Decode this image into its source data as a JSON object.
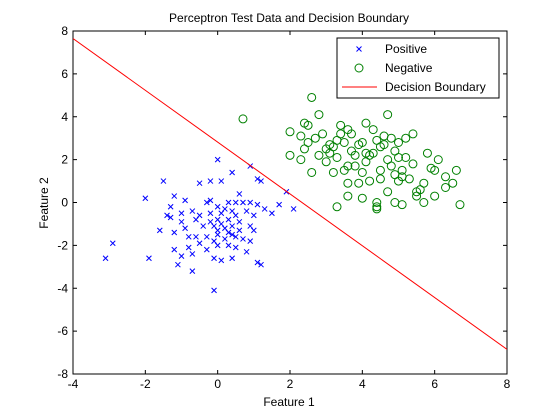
{
  "chart_data": {
    "type": "scatter",
    "title": "Perceptron Test Data and Decision Boundary",
    "xlabel": "Feature 1",
    "ylabel": "Feature 2",
    "xlim": [
      -4,
      8
    ],
    "ylim": [
      -8,
      8
    ],
    "xticks": [
      -4,
      -2,
      0,
      2,
      4,
      6,
      8
    ],
    "yticks": [
      -8,
      -6,
      -4,
      -2,
      0,
      2,
      4,
      6,
      8
    ],
    "grid": false,
    "legend_placement": "top-right",
    "series": [
      {
        "name": "Positive",
        "marker": "x",
        "color": "#0000ff",
        "points": [
          [
            -3.1,
            -2.6
          ],
          [
            -2.9,
            -1.9
          ],
          [
            -2.0,
            0.2
          ],
          [
            -1.9,
            -2.6
          ],
          [
            -1.6,
            -1.3
          ],
          [
            -1.5,
            1.0
          ],
          [
            -1.4,
            -0.6
          ],
          [
            -1.3,
            -0.7
          ],
          [
            -1.3,
            -0.2
          ],
          [
            -1.2,
            -1.4
          ],
          [
            -1.2,
            -2.2
          ],
          [
            -1.2,
            0.3
          ],
          [
            -1.1,
            -2.9
          ],
          [
            -1.0,
            -2.5
          ],
          [
            -1.0,
            -0.5
          ],
          [
            -1.0,
            -0.9
          ],
          [
            -0.9,
            -1.2
          ],
          [
            -0.9,
            0.1
          ],
          [
            -0.8,
            -1.6
          ],
          [
            -0.8,
            -2.1
          ],
          [
            -0.7,
            -0.4
          ],
          [
            -0.7,
            -3.2
          ],
          [
            -0.7,
            -2.4
          ],
          [
            -0.6,
            -0.8
          ],
          [
            -0.6,
            -1.6
          ],
          [
            -0.5,
            0.9
          ],
          [
            -0.5,
            -1.9
          ],
          [
            -0.5,
            -0.6
          ],
          [
            -0.4,
            -1.1
          ],
          [
            -0.3,
            -1.6
          ],
          [
            -0.3,
            -2.2
          ],
          [
            -0.3,
            0.0
          ],
          [
            -0.2,
            0.1
          ],
          [
            -0.2,
            -0.5
          ],
          [
            -0.2,
            -0.9
          ],
          [
            -0.2,
            1.0
          ],
          [
            -0.1,
            -1.1
          ],
          [
            -0.1,
            -1.8
          ],
          [
            -0.1,
            -2.6
          ],
          [
            -0.1,
            -4.1
          ],
          [
            0.0,
            -0.2
          ],
          [
            0.0,
            -0.8
          ],
          [
            0.0,
            -1.3
          ],
          [
            0.0,
            -1.5
          ],
          [
            0.0,
            -2.0
          ],
          [
            0.0,
            2.0
          ],
          [
            0.1,
            -0.5
          ],
          [
            0.1,
            -1.0
          ],
          [
            0.1,
            1.0
          ],
          [
            0.1,
            -2.7
          ],
          [
            0.2,
            -0.3
          ],
          [
            0.2,
            -1.2
          ],
          [
            0.2,
            -1.7
          ],
          [
            0.3,
            -0.8
          ],
          [
            0.3,
            -2.0
          ],
          [
            0.3,
            0.0
          ],
          [
            0.3,
            -1.4
          ],
          [
            0.4,
            -0.4
          ],
          [
            0.4,
            -1.1
          ],
          [
            0.4,
            -1.5
          ],
          [
            0.4,
            -2.6
          ],
          [
            0.4,
            1.4
          ],
          [
            0.5,
            0.0
          ],
          [
            0.5,
            -0.6
          ],
          [
            0.5,
            -1.6
          ],
          [
            0.5,
            -2.1
          ],
          [
            0.6,
            0.4
          ],
          [
            0.6,
            -1.3
          ],
          [
            0.6,
            -0.9
          ],
          [
            0.7,
            0.0
          ],
          [
            0.7,
            -1.7
          ],
          [
            0.8,
            -0.4
          ],
          [
            0.8,
            -2.3
          ],
          [
            0.9,
            1.7
          ],
          [
            0.9,
            0.0
          ],
          [
            0.9,
            -1.1
          ],
          [
            1.0,
            -0.6
          ],
          [
            1.0,
            -1.3
          ],
          [
            1.1,
            -2.8
          ],
          [
            1.1,
            1.1
          ],
          [
            1.1,
            -0.1
          ],
          [
            1.2,
            -2.9
          ],
          [
            1.2,
            1.0
          ],
          [
            1.3,
            -0.3
          ],
          [
            1.5,
            -0.5
          ],
          [
            1.7,
            -0.1
          ],
          [
            1.9,
            0.5
          ],
          [
            2.1,
            -0.3
          ],
          [
            0.9,
            -1.8
          ]
        ]
      },
      {
        "name": "Negative",
        "marker": "o",
        "color": "#008000",
        "points": [
          [
            0.7,
            3.9
          ],
          [
            2.0,
            2.2
          ],
          [
            2.0,
            3.3
          ],
          [
            2.3,
            2.0
          ],
          [
            2.3,
            3.1
          ],
          [
            2.4,
            3.7
          ],
          [
            2.4,
            2.5
          ],
          [
            2.5,
            3.6
          ],
          [
            2.5,
            2.8
          ],
          [
            2.6,
            4.9
          ],
          [
            2.6,
            1.4
          ],
          [
            2.7,
            3.0
          ],
          [
            2.8,
            2.2
          ],
          [
            2.8,
            4.1
          ],
          [
            2.9,
            3.2
          ],
          [
            3.0,
            1.9
          ],
          [
            3.0,
            2.5
          ],
          [
            3.1,
            2.7
          ],
          [
            3.1,
            2.3
          ],
          [
            3.2,
            2.6
          ],
          [
            3.2,
            1.4
          ],
          [
            3.3,
            2.1
          ],
          [
            3.3,
            2.9
          ],
          [
            3.3,
            -0.2
          ],
          [
            3.4,
            3.6
          ],
          [
            3.4,
            3.2
          ],
          [
            3.5,
            2.8
          ],
          [
            3.5,
            1.5
          ],
          [
            3.6,
            3.4
          ],
          [
            3.6,
            1.7
          ],
          [
            3.6,
            0.9
          ],
          [
            3.7,
            2.4
          ],
          [
            3.7,
            3.2
          ],
          [
            3.8,
            2.2
          ],
          [
            3.8,
            1.7
          ],
          [
            3.9,
            0.9
          ],
          [
            3.9,
            2.7
          ],
          [
            4.0,
            2.8
          ],
          [
            4.0,
            1.4
          ],
          [
            4.0,
            0.2
          ],
          [
            4.1,
            2.3
          ],
          [
            4.1,
            3.7
          ],
          [
            4.1,
            1.9
          ],
          [
            4.2,
            1.0
          ],
          [
            4.2,
            2.2
          ],
          [
            4.3,
            2.3
          ],
          [
            4.3,
            3.4
          ],
          [
            4.4,
            0.0
          ],
          [
            4.4,
            -0.2
          ],
          [
            4.4,
            -0.3
          ],
          [
            4.4,
            2.9
          ],
          [
            4.5,
            1.5
          ],
          [
            4.5,
            2.6
          ],
          [
            4.5,
            1.1
          ],
          [
            4.6,
            2.7
          ],
          [
            4.6,
            3.1
          ],
          [
            4.7,
            2.0
          ],
          [
            4.7,
            0.5
          ],
          [
            4.7,
            4.1
          ],
          [
            4.8,
            3.0
          ],
          [
            4.8,
            1.7
          ],
          [
            4.9,
            0.0
          ],
          [
            4.9,
            2.4
          ],
          [
            5.0,
            1.0
          ],
          [
            5.0,
            2.1
          ],
          [
            5.0,
            2.8
          ],
          [
            5.1,
            1.2
          ],
          [
            5.1,
            1.5
          ],
          [
            5.1,
            -0.1
          ],
          [
            5.2,
            3.0
          ],
          [
            5.2,
            2.1
          ],
          [
            5.3,
            1.1
          ],
          [
            5.4,
            1.8
          ],
          [
            5.4,
            3.2
          ],
          [
            5.5,
            0.3
          ],
          [
            5.5,
            0.5
          ],
          [
            5.6,
            0.6
          ],
          [
            5.7,
            0.0
          ],
          [
            5.7,
            0.9
          ],
          [
            5.8,
            2.3
          ],
          [
            5.9,
            1.6
          ],
          [
            6.0,
            0.3
          ],
          [
            6.0,
            1.5
          ],
          [
            6.1,
            2.0
          ],
          [
            6.3,
            1.2
          ],
          [
            6.5,
            0.9
          ],
          [
            6.6,
            1.5
          ],
          [
            6.7,
            -0.1
          ],
          [
            6.3,
            0.7
          ],
          [
            4.9,
            1.3
          ],
          [
            3.6,
            0.3
          ]
        ]
      },
      {
        "name": "Decision Boundary",
        "type": "line",
        "color": "#ff0000",
        "points": [
          [
            -4,
            7.65
          ],
          [
            8,
            -6.85
          ]
        ]
      }
    ]
  }
}
